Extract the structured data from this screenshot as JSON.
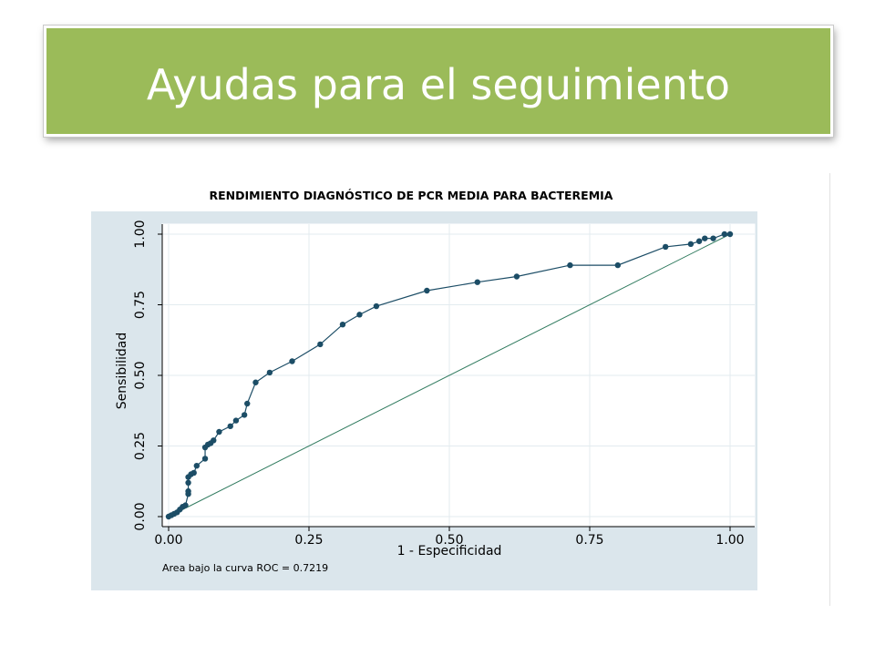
{
  "slide": {
    "title": "Ayudas para el seguimiento",
    "accent_color": "#9bbb59"
  },
  "chart_data": {
    "type": "line",
    "title": "RENDIMIENTO DIAGNÓSTICO DE PCR MEDIA PARA BACTEREMIA",
    "xlabel": "1 - Especificidad",
    "ylabel": "Sensibilidad",
    "xlim": [
      0,
      1
    ],
    "ylim": [
      0,
      1
    ],
    "x_ticks": [
      "0.00",
      "0.25",
      "0.50",
      "0.75",
      "1.00"
    ],
    "y_ticks": [
      "0.00",
      "0.25",
      "0.50",
      "0.75",
      "1.00"
    ],
    "grid": true,
    "annotation": "Area bajo la curva ROC = 0.7219",
    "plot_background": "#ffffff",
    "frame_background": "#dbe6ec",
    "line_color": "#1c4d66",
    "reference_line_color": "#2f7a5e",
    "series": [
      {
        "x": [
          0.0,
          0.005,
          0.01,
          0.015,
          0.02,
          0.025,
          0.03,
          0.035,
          0.035,
          0.035,
          0.035,
          0.04,
          0.045,
          0.05,
          0.065,
          0.065,
          0.07,
          0.075,
          0.08,
          0.09,
          0.11,
          0.12,
          0.135,
          0.14,
          0.155,
          0.18,
          0.22,
          0.27,
          0.31,
          0.34,
          0.37,
          0.46,
          0.55,
          0.62,
          0.715,
          0.8,
          0.885,
          0.93,
          0.945,
          0.955,
          0.97,
          0.99,
          1.0
        ],
        "y": [
          0.0,
          0.005,
          0.01,
          0.015,
          0.025,
          0.035,
          0.04,
          0.08,
          0.09,
          0.12,
          0.14,
          0.15,
          0.155,
          0.18,
          0.205,
          0.245,
          0.255,
          0.26,
          0.27,
          0.3,
          0.32,
          0.34,
          0.36,
          0.4,
          0.475,
          0.51,
          0.55,
          0.61,
          0.68,
          0.715,
          0.745,
          0.8,
          0.83,
          0.85,
          0.89,
          0.89,
          0.955,
          0.965,
          0.975,
          0.985,
          0.985,
          1.0,
          1.0
        ]
      },
      {
        "x": [
          0,
          1
        ],
        "y": [
          0,
          1
        ]
      }
    ]
  }
}
